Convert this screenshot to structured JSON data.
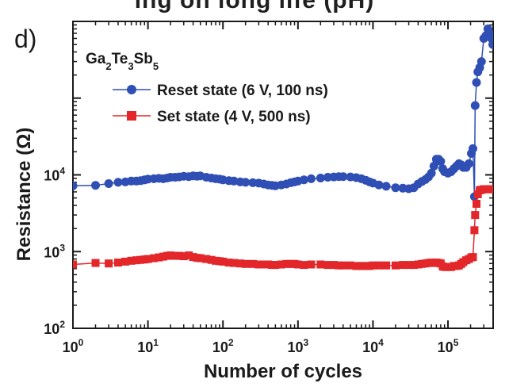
{
  "top_cut_text": "ing on long life (pH)",
  "panel_label": "d)",
  "compound": {
    "parts": [
      {
        "t": "Ga",
        "sub": false
      },
      {
        "t": "2",
        "sub": true
      },
      {
        "t": "Te",
        "sub": false
      },
      {
        "t": "3",
        "sub": true
      },
      {
        "t": "Sb",
        "sub": false
      },
      {
        "t": "5",
        "sub": true
      }
    ]
  },
  "chart_data": {
    "type": "scatter",
    "xlabel": "Number of cycles",
    "ylabel": "Resistance (Ω)",
    "xscale": "log",
    "yscale": "log",
    "xlim": [
      1,
      400000
    ],
    "ylim": [
      100,
      1000000
    ],
    "x_ticks": [
      {
        "value": 1,
        "base": "10",
        "exp": "0"
      },
      {
        "value": 10,
        "base": "10",
        "exp": "1"
      },
      {
        "value": 100,
        "base": "10",
        "exp": "2"
      },
      {
        "value": 1000,
        "base": "10",
        "exp": "3"
      },
      {
        "value": 10000,
        "base": "10",
        "exp": "4"
      },
      {
        "value": 100000,
        "base": "10",
        "exp": "5"
      }
    ],
    "y_ticks": [
      {
        "value": 100,
        "base": "10",
        "exp": "2"
      },
      {
        "value": 1000,
        "base": "10",
        "exp": "3"
      },
      {
        "value": 10000,
        "base": "10",
        "exp": "4"
      }
    ],
    "legend_position": "upper-left",
    "series": [
      {
        "name": "Reset state (6 V, 100 ns)",
        "color": "#2f4fb5",
        "marker": "circle",
        "points": [
          [
            1,
            7200
          ],
          [
            2,
            7300
          ],
          [
            3,
            7700
          ],
          [
            4,
            8000
          ],
          [
            5,
            8100
          ],
          [
            6,
            8300
          ],
          [
            7,
            8300
          ],
          [
            8,
            8400
          ],
          [
            9,
            8600
          ],
          [
            10,
            8800
          ],
          [
            12,
            8900
          ],
          [
            14,
            9000
          ],
          [
            16,
            8900
          ],
          [
            18,
            9100
          ],
          [
            20,
            9300
          ],
          [
            23,
            9300
          ],
          [
            26,
            9400
          ],
          [
            30,
            9600
          ],
          [
            35,
            9500
          ],
          [
            40,
            9700
          ],
          [
            45,
            9600
          ],
          [
            50,
            9700
          ],
          [
            60,
            9300
          ],
          [
            70,
            9100
          ],
          [
            80,
            8900
          ],
          [
            90,
            8800
          ],
          [
            100,
            8600
          ],
          [
            120,
            8400
          ],
          [
            140,
            8300
          ],
          [
            170,
            8100
          ],
          [
            200,
            8000
          ],
          [
            250,
            7900
          ],
          [
            300,
            7800
          ],
          [
            350,
            7600
          ],
          [
            400,
            7400
          ],
          [
            450,
            7300
          ],
          [
            500,
            7200
          ],
          [
            600,
            7400
          ],
          [
            700,
            7600
          ],
          [
            800,
            7900
          ],
          [
            900,
            8100
          ],
          [
            1000,
            8300
          ],
          [
            1200,
            8600
          ],
          [
            1500,
            8900
          ],
          [
            2000,
            9100
          ],
          [
            2500,
            9300
          ],
          [
            3000,
            9400
          ],
          [
            3500,
            9500
          ],
          [
            4000,
            9500
          ],
          [
            5000,
            9400
          ],
          [
            6000,
            9200
          ],
          [
            7000,
            8900
          ],
          [
            8000,
            8500
          ],
          [
            9000,
            8100
          ],
          [
            10000,
            7800
          ],
          [
            12000,
            7400
          ],
          [
            15000,
            7100
          ],
          [
            20000,
            6800
          ],
          [
            25000,
            6700
          ],
          [
            30000,
            6600
          ],
          [
            35000,
            6800
          ],
          [
            40000,
            7600
          ],
          [
            45000,
            8200
          ],
          [
            50000,
            8700
          ],
          [
            55000,
            9400
          ],
          [
            60000,
            10500
          ],
          [
            65000,
            13000
          ],
          [
            70000,
            16000
          ],
          [
            75000,
            16000
          ],
          [
            80000,
            15000
          ],
          [
            85000,
            12000
          ],
          [
            90000,
            11000
          ],
          [
            100000,
            10500
          ],
          [
            110000,
            11000
          ],
          [
            120000,
            12000
          ],
          [
            130000,
            13000
          ],
          [
            140000,
            14000
          ],
          [
            150000,
            13500
          ],
          [
            160000,
            12500
          ],
          [
            175000,
            12500
          ],
          [
            190000,
            14000
          ],
          [
            205000,
            19000
          ],
          [
            215000,
            22000
          ],
          [
            225000,
            5200
          ],
          [
            230000,
            80000
          ],
          [
            240000,
            160000
          ],
          [
            250000,
            220000
          ],
          [
            265000,
            250000
          ],
          [
            280000,
            300000
          ],
          [
            300000,
            600000
          ],
          [
            320000,
            650000
          ],
          [
            340000,
            800000
          ],
          [
            360000,
            700000
          ],
          [
            380000,
            600000
          ],
          [
            395000,
            500000
          ]
        ]
      },
      {
        "name": "Set state (4 V, 500 ns)",
        "color": "#e3262a",
        "marker": "square",
        "points": [
          [
            1,
            680
          ],
          [
            2,
            710
          ],
          [
            3,
            700
          ],
          [
            4,
            720
          ],
          [
            5,
            740
          ],
          [
            6,
            760
          ],
          [
            7,
            770
          ],
          [
            8,
            780
          ],
          [
            9,
            790
          ],
          [
            10,
            800
          ],
          [
            12,
            820
          ],
          [
            14,
            840
          ],
          [
            16,
            860
          ],
          [
            18,
            880
          ],
          [
            20,
            890
          ],
          [
            23,
            880
          ],
          [
            26,
            880
          ],
          [
            30,
            870
          ],
          [
            35,
            890
          ],
          [
            40,
            850
          ],
          [
            45,
            830
          ],
          [
            50,
            820
          ],
          [
            60,
            800
          ],
          [
            70,
            780
          ],
          [
            80,
            760
          ],
          [
            90,
            750
          ],
          [
            100,
            740
          ],
          [
            120,
            720
          ],
          [
            140,
            710
          ],
          [
            170,
            700
          ],
          [
            200,
            690
          ],
          [
            250,
            690
          ],
          [
            300,
            680
          ],
          [
            350,
            680
          ],
          [
            400,
            680
          ],
          [
            450,
            670
          ],
          [
            500,
            670
          ],
          [
            600,
            680
          ],
          [
            700,
            690
          ],
          [
            800,
            690
          ],
          [
            900,
            690
          ],
          [
            1000,
            680
          ],
          [
            1200,
            670
          ],
          [
            1500,
            680
          ],
          [
            2000,
            680
          ],
          [
            2500,
            670
          ],
          [
            3000,
            670
          ],
          [
            3500,
            660
          ],
          [
            4000,
            660
          ],
          [
            5000,
            660
          ],
          [
            6000,
            650
          ],
          [
            7000,
            650
          ],
          [
            8000,
            650
          ],
          [
            9000,
            650
          ],
          [
            10000,
            660
          ],
          [
            12000,
            660
          ],
          [
            15000,
            660
          ],
          [
            20000,
            660
          ],
          [
            25000,
            670
          ],
          [
            30000,
            670
          ],
          [
            35000,
            670
          ],
          [
            40000,
            680
          ],
          [
            45000,
            690
          ],
          [
            50000,
            700
          ],
          [
            55000,
            710
          ],
          [
            60000,
            720
          ],
          [
            65000,
            710
          ],
          [
            70000,
            720
          ],
          [
            75000,
            710
          ],
          [
            80000,
            700
          ],
          [
            85000,
            640
          ],
          [
            90000,
            630
          ],
          [
            100000,
            630
          ],
          [
            110000,
            630
          ],
          [
            120000,
            650
          ],
          [
            130000,
            650
          ],
          [
            140000,
            660
          ],
          [
            150000,
            690
          ],
          [
            160000,
            730
          ],
          [
            175000,
            770
          ],
          [
            190000,
            800
          ],
          [
            205000,
            840
          ],
          [
            215000,
            850
          ],
          [
            225000,
            1900
          ],
          [
            230000,
            3000
          ],
          [
            240000,
            4200
          ],
          [
            250000,
            5600
          ],
          [
            265000,
            6300
          ],
          [
            280000,
            6400
          ],
          [
            300000,
            6500
          ],
          [
            320000,
            6500
          ],
          [
            340000,
            6500
          ],
          [
            360000,
            6500
          ],
          [
            380000,
            6500
          ],
          [
            395000,
            6500
          ]
        ]
      }
    ]
  }
}
